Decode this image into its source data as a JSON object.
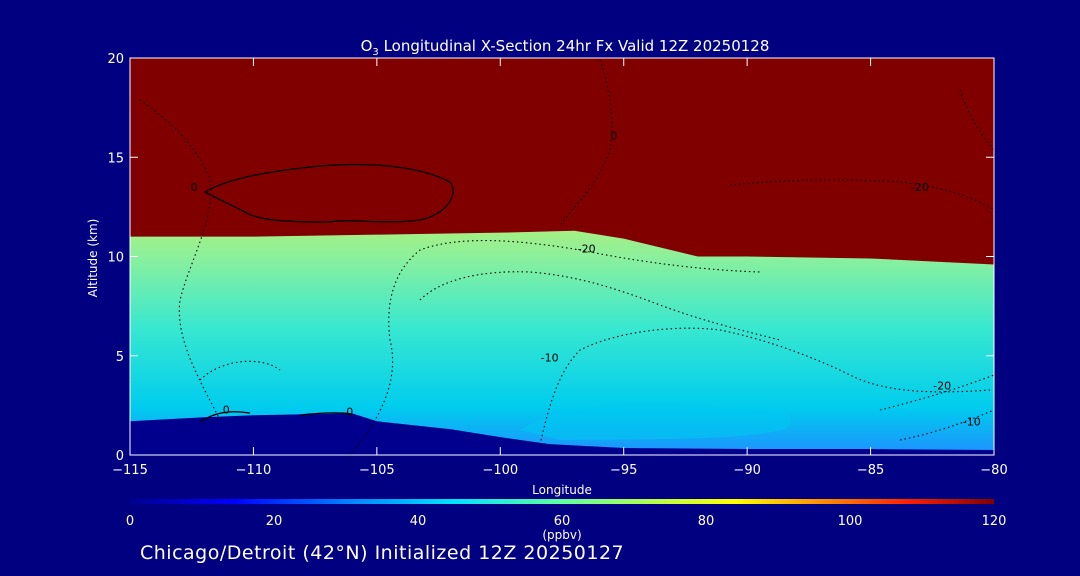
{
  "chart_data": {
    "type": "heatmap",
    "title_prefix": "O",
    "title_sub": "3",
    "title_suffix": " Longitudinal X-Section 24hr  Fx Valid 12Z 20250128",
    "xlabel": "Longitude",
    "ylabel": "Altitude (km)",
    "xlim": [
      -115,
      -80
    ],
    "ylim": [
      0,
      20
    ],
    "x_ticks": [
      -115,
      -110,
      -105,
      -100,
      -95,
      -90,
      -85,
      -80
    ],
    "x_tick_labels": [
      "−115",
      "−110",
      "−105",
      "−100",
      "−95",
      "−90",
      "−85",
      "−80"
    ],
    "y_ticks": [
      0,
      5,
      10,
      15,
      20
    ],
    "y_tick_labels": [
      "0",
      "5",
      "10",
      "15",
      "20"
    ],
    "colorbar": {
      "min": 0,
      "max": 120,
      "ticks": [
        "0",
        "20",
        "40",
        "60",
        "80",
        "100",
        "120"
      ],
      "units": "(ppbv)"
    },
    "tropopause_km": [
      [
        -115,
        11.0
      ],
      [
        -110,
        11.0
      ],
      [
        -105,
        11.1
      ],
      [
        -100,
        11.2
      ],
      [
        -97,
        11.3
      ],
      [
        -95,
        10.9
      ],
      [
        -92,
        10.0
      ],
      [
        -90,
        10.0
      ],
      [
        -85,
        9.9
      ],
      [
        -80,
        9.6
      ]
    ],
    "terrain_km": [
      [
        -115,
        1.7
      ],
      [
        -112,
        1.9
      ],
      [
        -110,
        2.0
      ],
      [
        -106,
        2.1
      ],
      [
        -105,
        1.7
      ],
      [
        -102,
        1.3
      ],
      [
        -100,
        0.9
      ],
      [
        -98,
        0.55
      ],
      [
        -95,
        0.35
      ],
      [
        -90,
        0.3
      ],
      [
        -85,
        0.3
      ],
      [
        -80,
        0.25
      ]
    ],
    "contour_labels": [
      {
        "text": "0",
        "lon": -112.4,
        "alt": 13.5
      },
      {
        "text": "0",
        "lon": -111.1,
        "alt": 2.3
      },
      {
        "text": "0",
        "lon": -106.1,
        "alt": 2.2
      },
      {
        "text": "0",
        "lon": -95.4,
        "alt": 16.1
      },
      {
        "text": "-20",
        "lon": -96.5,
        "alt": 10.4
      },
      {
        "text": "-20",
        "lon": -83.0,
        "alt": 13.5
      },
      {
        "text": "-10",
        "lon": -98.0,
        "alt": 4.9
      },
      {
        "text": "-20",
        "lon": -82.1,
        "alt": 3.5
      },
      {
        "text": "-10",
        "lon": -80.9,
        "alt": 1.7
      }
    ]
  },
  "footer": "Chicago/Detroit (42°N) Initialized 12Z 20250127"
}
